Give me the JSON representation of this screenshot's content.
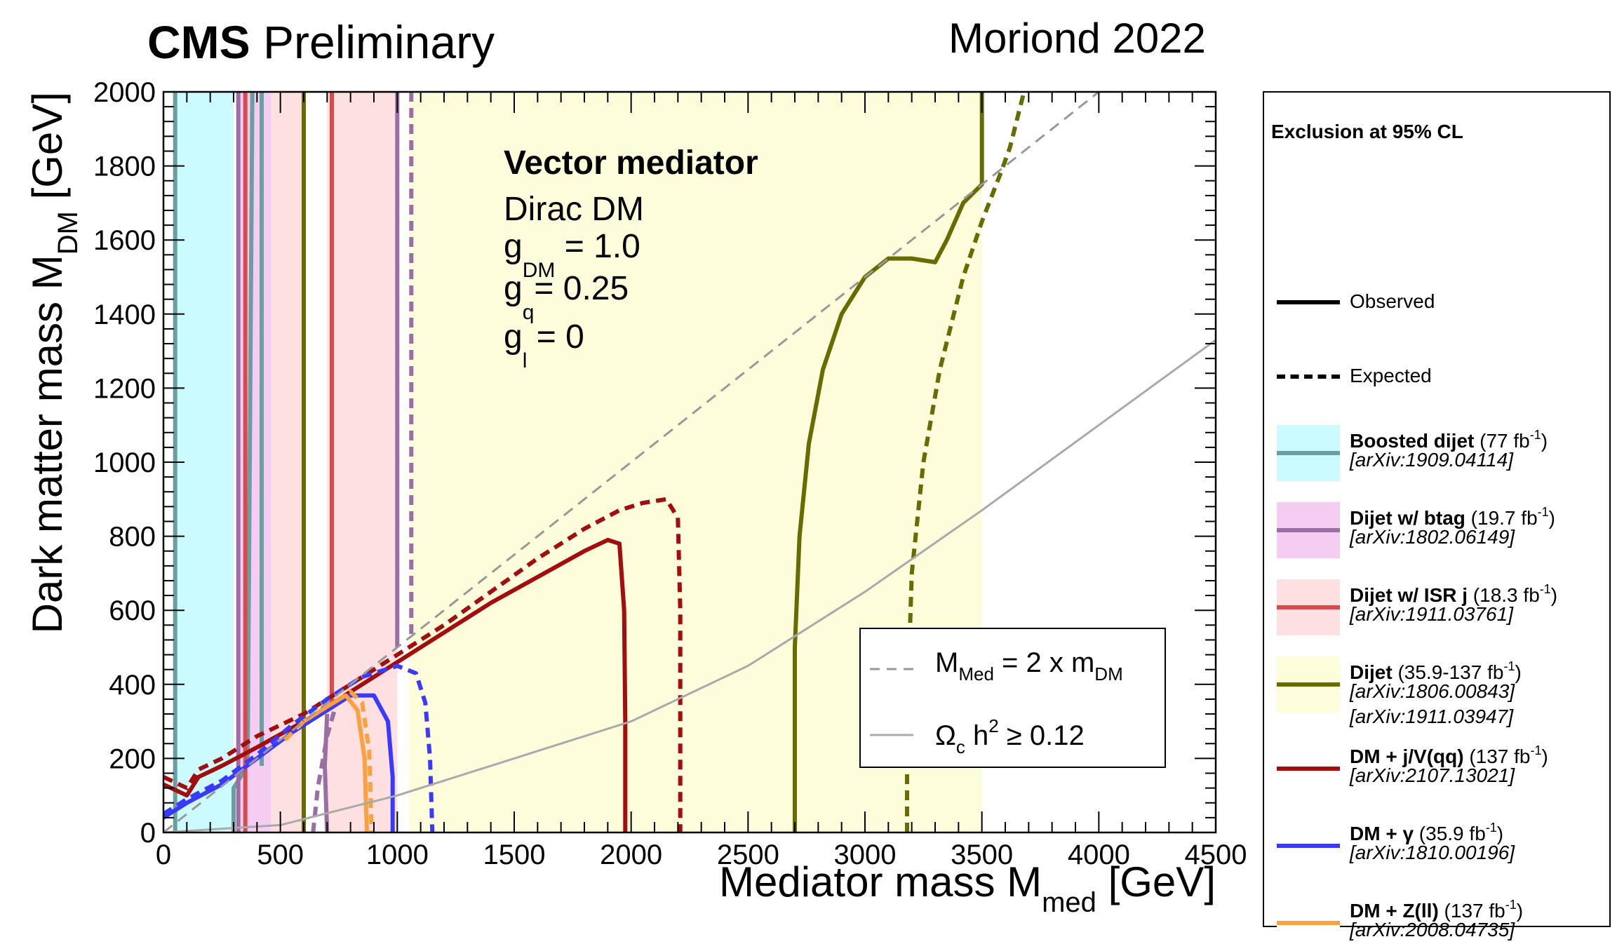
{
  "header": {
    "cms_bold": "CMS",
    "cms_rest": " Preliminary",
    "conference": "Moriond 2022"
  },
  "legend": {
    "title": "Exclusion at 95% CL",
    "observed_label": "Observed",
    "expected_label": "Expected",
    "entries": [
      {
        "name": "Boosted dijet",
        "lumi": " (77 fb",
        "lumi_sup": "-1",
        "lumi_end": ")",
        "refs": [
          "[arXiv:1909.04114]"
        ],
        "fill": "#ccfbff",
        "line": "#6a9ea0"
      },
      {
        "name": "Dijet w/ btag",
        "lumi": " (19.7 fb",
        "lumi_sup": "-1",
        "lumi_end": ")",
        "refs": [
          "[arXiv:1802.06149]"
        ],
        "fill": "#f5cdf3",
        "line": "#9b6fa6"
      },
      {
        "name": "Dijet w/ ISR j",
        "lumi": " (18.3 fb",
        "lumi_sup": "-1",
        "lumi_end": ")",
        "refs": [
          "[arXiv:1911.03761]"
        ],
        "fill": "#fde0df",
        "line": "#d94a4a"
      },
      {
        "name": "Dijet",
        "lumi": " (35.9-137 fb",
        "lumi_sup": "-1",
        "lumi_end": ")",
        "refs": [
          "[arXiv:1806.00843]",
          "[arXiv:1911.03947]"
        ],
        "fill": "#fdfddc",
        "line": "#676b00"
      },
      {
        "name": "DM + j/V(qq)",
        "lumi": " (137 fb",
        "lumi_sup": "-1",
        "lumi_end": ")",
        "refs": [
          "[arXiv:2107.13021]"
        ],
        "fill": "#ffffff",
        "line": "#a30d0d"
      },
      {
        "name": "DM + γ",
        "lumi": " (35.9 fb",
        "lumi_sup": "-1",
        "lumi_end": ")",
        "refs": [
          "[arXiv:1810.00196]"
        ],
        "fill": "#ffffff",
        "line": "#3a3aff"
      },
      {
        "name": "DM + Z(ll)",
        "lumi": " (137 fb",
        "lumi_sup": "-1",
        "lumi_end": ")",
        "refs": [
          "[arXiv:2008.04735]"
        ],
        "fill": "#ffffff",
        "line": "#ffa040"
      }
    ]
  },
  "chart_data": {
    "type": "line",
    "title": "CMS Preliminary",
    "xlabel": "Mediator mass M",
    "xlabel_sub": "med",
    "xlabel_unit": " [GeV]",
    "ylabel": "Dark matter mass M",
    "ylabel_sub": "DM",
    "ylabel_unit": " [GeV]",
    "xlim": [
      0,
      4500
    ],
    "ylim": [
      0,
      2000
    ],
    "x_ticks": [
      0,
      500,
      1000,
      1500,
      2000,
      2500,
      3000,
      3500,
      4000,
      4500
    ],
    "y_ticks": [
      0,
      200,
      400,
      600,
      800,
      1000,
      1200,
      1400,
      1600,
      1800,
      2000
    ],
    "annotation": {
      "title": "Vector mediator",
      "line1": "Dirac DM",
      "g_dm_val": " = 1.0",
      "g_dm_sub": "DM",
      "g_q_val": "= 0.25",
      "g_q_sub": "q",
      "g_l_val": " = 0",
      "g_l_sub": "l",
      "g_letter": "g"
    },
    "inset_legend": {
      "diag_main": "M",
      "diag_sub": "Med",
      "diag_mid": " = 2 x m",
      "diag_sub2": "DM",
      "relic_main": "Ω",
      "relic_sub": "c",
      "relic_mid": " h",
      "relic_sup": "2",
      "relic_end": " ≥ 0.12"
    },
    "bands": [
      {
        "name": "Boosted dijet",
        "xmin": 50,
        "xmax": 300,
        "color": "#ccfbff"
      },
      {
        "name": "Dijet w/ btag",
        "xmin": 320,
        "xmax": 460,
        "color": "#f5cdf3"
      },
      {
        "name": "Dijet w/ ISR j",
        "xmin": 460,
        "xmax": 600,
        "color": "#fde0df"
      },
      {
        "name": "Dijet w/ ISR j (2)",
        "xmin": 700,
        "xmax": 1000,
        "color": "#fde0df"
      },
      {
        "name": "Dijet",
        "xmin": 1050,
        "xmax": 3500,
        "color": "#fdfddc"
      }
    ],
    "series": [
      {
        "name": "Boosted dijet observed",
        "color": "#6a9ea0",
        "dash": false,
        "points": [
          [
            50,
            2000
          ],
          [
            50,
            0
          ]
        ]
      },
      {
        "name": "Boosted dijet observed (2)",
        "color": "#6a9ea0",
        "dash": false,
        "points": [
          [
            300,
            0
          ],
          [
            300,
            120
          ],
          [
            340,
            160
          ],
          [
            360,
            190
          ],
          [
            380,
            2000
          ]
        ]
      },
      {
        "name": "Boosted dijet observed (3)",
        "color": "#6a9ea0",
        "dash": false,
        "points": [
          [
            420,
            2000
          ],
          [
            420,
            180
          ]
        ]
      },
      {
        "name": "Dijet w/ btag observed",
        "color": "#9b6fa6",
        "dash": false,
        "points": [
          [
            320,
            2000
          ],
          [
            320,
            0
          ]
        ]
      },
      {
        "name": "Dijet w/ btag observed (2)",
        "color": "#9b6fa6",
        "dash": false,
        "points": [
          [
            1000,
            2000
          ],
          [
            1000,
            500
          ]
        ]
      },
      {
        "name": "Dijet w/ btag observed (3)",
        "color": "#9b6fa6",
        "dash": false,
        "points": [
          [
            700,
            0
          ],
          [
            690,
            180
          ],
          [
            700,
            320
          ]
        ]
      },
      {
        "name": "Dijet w/ btag expected",
        "color": "#9b6fa6",
        "dash": true,
        "points": [
          [
            1060,
            2000
          ],
          [
            1060,
            520
          ]
        ]
      },
      {
        "name": "Dijet w/ btag expected (2)",
        "color": "#9b6fa6",
        "dash": true,
        "points": [
          [
            640,
            0
          ],
          [
            660,
            120
          ],
          [
            700,
            260
          ],
          [
            740,
            350
          ]
        ]
      },
      {
        "name": "Dijet w/ ISR j observed",
        "color": "#d94a4a",
        "dash": false,
        "points": [
          [
            350,
            0
          ],
          [
            350,
            2000
          ]
        ]
      },
      {
        "name": "Dijet w/ ISR j observed (2)",
        "color": "#d94a4a",
        "dash": false,
        "points": [
          [
            720,
            350
          ],
          [
            720,
            2000
          ]
        ]
      },
      {
        "name": "Dijet observed",
        "color": "#676b00",
        "dash": false,
        "points": [
          [
            600,
            0
          ],
          [
            600,
            2000
          ]
        ]
      },
      {
        "name": "Dijet observed (2)",
        "color": "#676b00",
        "dash": false,
        "points": [
          [
            2700,
            0
          ],
          [
            2700,
            500
          ],
          [
            2720,
            800
          ],
          [
            2760,
            1050
          ],
          [
            2820,
            1250
          ],
          [
            2900,
            1400
          ],
          [
            3000,
            1500
          ],
          [
            3100,
            1550
          ],
          [
            3200,
            1550
          ],
          [
            3300,
            1540
          ],
          [
            3350,
            1600
          ],
          [
            3420,
            1700
          ],
          [
            3500,
            1750
          ],
          [
            3500,
            2000
          ]
        ]
      },
      {
        "name": "Dijet expected",
        "color": "#676b00",
        "dash": true,
        "points": [
          [
            3180,
            0
          ],
          [
            3180,
            300
          ],
          [
            3200,
            700
          ],
          [
            3250,
            1000
          ],
          [
            3320,
            1250
          ],
          [
            3420,
            1500
          ],
          [
            3500,
            1650
          ],
          [
            3580,
            1780
          ],
          [
            3620,
            1850
          ],
          [
            3660,
            1950
          ],
          [
            3680,
            2000
          ]
        ]
      },
      {
        "name": "DM + j/V(qq) observed",
        "color": "#a30d0d",
        "dash": false,
        "points": [
          [
            0,
            130
          ],
          [
            100,
            100
          ],
          [
            150,
            150
          ],
          [
            250,
            180
          ],
          [
            400,
            230
          ],
          [
            600,
            300
          ],
          [
            800,
            380
          ],
          [
            1000,
            460
          ],
          [
            1200,
            540
          ],
          [
            1300,
            580
          ],
          [
            1400,
            620
          ],
          [
            1600,
            690
          ],
          [
            1800,
            760
          ],
          [
            1900,
            790
          ],
          [
            1950,
            780
          ],
          [
            1970,
            600
          ],
          [
            1975,
            300
          ],
          [
            1975,
            0
          ]
        ]
      },
      {
        "name": "DM + j/V(qq) expected",
        "color": "#a30d0d",
        "dash": true,
        "points": [
          [
            0,
            150
          ],
          [
            100,
            120
          ],
          [
            150,
            170
          ],
          [
            250,
            200
          ],
          [
            400,
            260
          ],
          [
            600,
            320
          ],
          [
            800,
            400
          ],
          [
            1000,
            480
          ],
          [
            1200,
            560
          ],
          [
            1400,
            650
          ],
          [
            1600,
            740
          ],
          [
            1800,
            820
          ],
          [
            1950,
            870
          ],
          [
            2050,
            890
          ],
          [
            2150,
            900
          ],
          [
            2200,
            850
          ],
          [
            2210,
            600
          ],
          [
            2210,
            300
          ],
          [
            2210,
            0
          ]
        ]
      },
      {
        "name": "DM + gamma observed",
        "color": "#3a3aff",
        "dash": false,
        "points": [
          [
            0,
            40
          ],
          [
            100,
            80
          ],
          [
            250,
            130
          ],
          [
            400,
            200
          ],
          [
            550,
            270
          ],
          [
            700,
            330
          ],
          [
            800,
            370
          ],
          [
            900,
            370
          ],
          [
            960,
            300
          ],
          [
            980,
            150
          ],
          [
            980,
            0
          ]
        ]
      },
      {
        "name": "DM + gamma expected",
        "color": "#3a3aff",
        "dash": true,
        "points": [
          [
            0,
            50
          ],
          [
            100,
            90
          ],
          [
            250,
            140
          ],
          [
            400,
            210
          ],
          [
            550,
            290
          ],
          [
            700,
            360
          ],
          [
            850,
            420
          ],
          [
            1000,
            450
          ],
          [
            1080,
            430
          ],
          [
            1120,
            350
          ],
          [
            1140,
            200
          ],
          [
            1150,
            0
          ]
        ]
      },
      {
        "name": "DM + Z(ll) observed",
        "color": "#ffa040",
        "dash": false,
        "points": [
          [
            600,
            300
          ],
          [
            650,
            320
          ],
          [
            700,
            340
          ],
          [
            780,
            370
          ],
          [
            830,
            330
          ],
          [
            860,
            200
          ],
          [
            870,
            0
          ]
        ]
      },
      {
        "name": "DM + Z(ll) expected",
        "color": "#ffa040",
        "dash": true,
        "points": [
          [
            520,
            250
          ],
          [
            600,
            300
          ],
          [
            700,
            340
          ],
          [
            800,
            380
          ],
          [
            850,
            350
          ],
          [
            880,
            220
          ],
          [
            890,
            0
          ]
        ]
      },
      {
        "name": "M_Med = 2 x m_DM",
        "color": "#999999",
        "dash": true,
        "points": [
          [
            0,
            0
          ],
          [
            4000,
            2000
          ]
        ]
      },
      {
        "name": "Relic density",
        "color": "#aaaaaa",
        "dash": false,
        "points": [
          [
            0,
            0
          ],
          [
            500,
            20
          ],
          [
            1000,
            100
          ],
          [
            1500,
            200
          ],
          [
            2000,
            300
          ],
          [
            2500,
            450
          ],
          [
            3000,
            650
          ],
          [
            3500,
            870
          ],
          [
            4000,
            1100
          ],
          [
            4500,
            1330
          ]
        ]
      }
    ]
  }
}
